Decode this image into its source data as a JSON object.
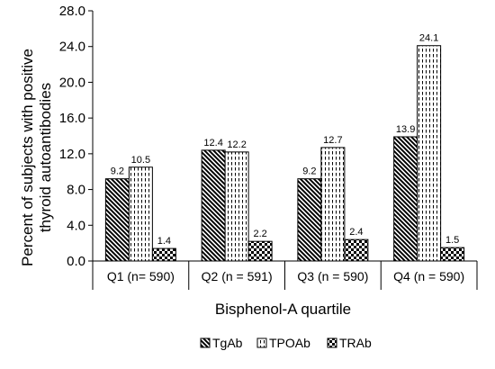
{
  "chart_data": {
    "type": "bar",
    "title": "",
    "xlabel": "Bisphenol-A quartile",
    "ylabel": "Percent of subjects with positive thyroid autoantibodies",
    "ylabel_lines": [
      "Percent of subjects with positive",
      "thyroid autoantibodies"
    ],
    "categories": [
      "Q1 (n= 590)",
      "Q2 (n = 591)",
      "Q3 (n = 590)",
      "Q4 (n = 590)"
    ],
    "series": [
      {
        "name": "TgAb",
        "values": [
          9.2,
          12.4,
          9.2,
          13.9
        ],
        "labels": [
          "9.2",
          "12.4",
          "9.2",
          "13.9"
        ],
        "pattern": "diagonal"
      },
      {
        "name": "TPOAb",
        "values": [
          10.5,
          12.2,
          12.7,
          24.1
        ],
        "labels": [
          "10.5",
          "12.2",
          "12.7",
          "24.1"
        ],
        "pattern": "vertical-dashes"
      },
      {
        "name": "TRAb",
        "values": [
          1.4,
          2.2,
          2.4,
          1.5
        ],
        "labels": [
          "1.4",
          "2.2",
          "2.4",
          "1.5"
        ],
        "pattern": "checker"
      }
    ],
    "ylim": [
      0,
      28
    ],
    "yticks": [
      0,
      4,
      8,
      12,
      16,
      20,
      24,
      28
    ],
    "ytick_labels": [
      "0.0",
      "4.0",
      "8.0",
      "12.0",
      "16.0",
      "20.0",
      "24.0",
      "28.0"
    ],
    "grid": false,
    "legend": "bottom"
  }
}
